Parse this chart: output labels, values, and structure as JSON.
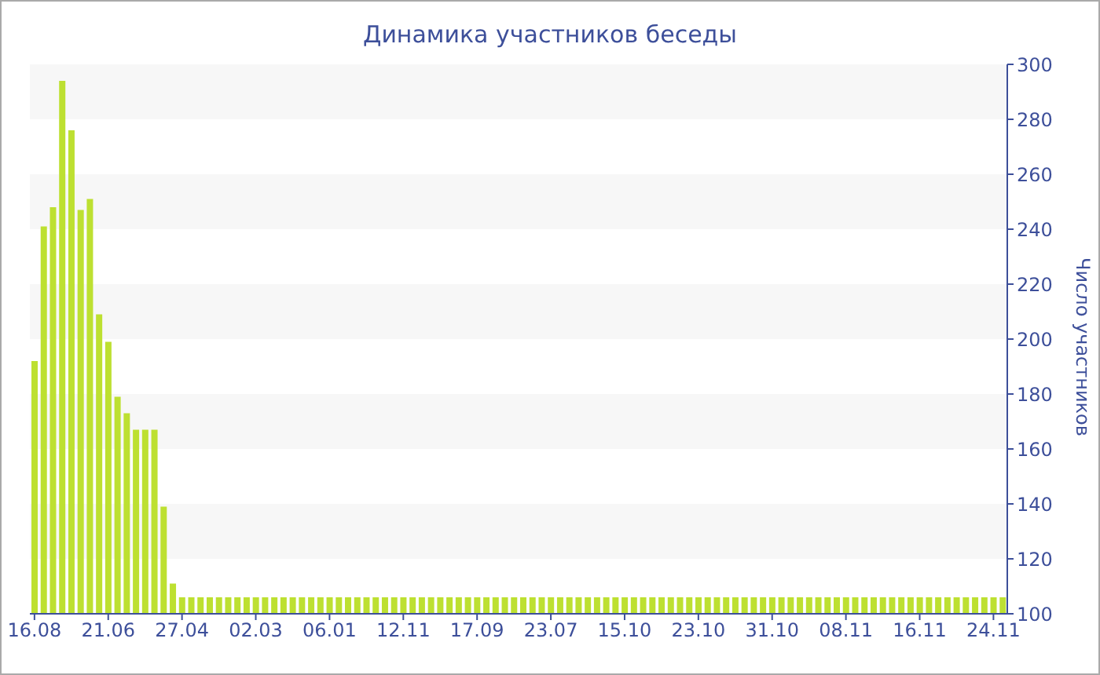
{
  "chart_data": {
    "type": "bar",
    "title": "Динамика участников беседы",
    "ylabel": "Число участников",
    "categories": [
      "16.08",
      null,
      null,
      null,
      null,
      null,
      null,
      null,
      "21.06",
      null,
      null,
      null,
      null,
      null,
      null,
      null,
      "27.04",
      null,
      null,
      null,
      null,
      null,
      null,
      null,
      "02.03",
      null,
      null,
      null,
      null,
      null,
      null,
      null,
      "06.01",
      null,
      null,
      null,
      null,
      null,
      null,
      null,
      "12.11",
      null,
      null,
      null,
      null,
      null,
      null,
      null,
      "17.09",
      null,
      null,
      null,
      null,
      null,
      null,
      null,
      "23.07",
      null,
      null,
      null,
      null,
      null,
      null,
      null,
      "15.10",
      null,
      null,
      null,
      null,
      null,
      null,
      null,
      "23.10",
      null,
      null,
      null,
      null,
      null,
      null,
      null,
      "31.10",
      null,
      null,
      null,
      null,
      null,
      null,
      null,
      "08.11",
      null,
      null,
      null,
      null,
      null,
      null,
      null,
      "16.11",
      null,
      null,
      null,
      null,
      null,
      null,
      null,
      "24.11",
      null
    ],
    "values": [
      192,
      241,
      248,
      294,
      276,
      247,
      251,
      209,
      199,
      179,
      173,
      167,
      167,
      167,
      139,
      111,
      106,
      106,
      106,
      106,
      106,
      106,
      106,
      106,
      106,
      106,
      106,
      106,
      106,
      106,
      106,
      106,
      106,
      106,
      106,
      106,
      106,
      106,
      106,
      106,
      106,
      106,
      106,
      106,
      106,
      106,
      106,
      106,
      106,
      106,
      106,
      106,
      106,
      106,
      106,
      106,
      106,
      106,
      106,
      106,
      106,
      106,
      106,
      106,
      106,
      106,
      106,
      106,
      106,
      106,
      106,
      106,
      106,
      106,
      106,
      106,
      106,
      106,
      106,
      106,
      106,
      106,
      106,
      106,
      106,
      106,
      106,
      106,
      106,
      106,
      106,
      106,
      106,
      106,
      106,
      106,
      106,
      106,
      106,
      106,
      106,
      106,
      106,
      106,
      106,
      106
    ],
    "color": "#bde031",
    "ylim": [
      100,
      300
    ],
    "yticks": [
      100,
      120,
      140,
      160,
      180,
      200,
      220,
      240,
      260,
      280,
      300
    ],
    "bands": [
      {
        "axis": "y",
        "from": 120,
        "to": 140,
        "color": "#f7f7f7"
      },
      {
        "axis": "y",
        "from": 160,
        "to": 180,
        "color": "#f7f7f7"
      },
      {
        "axis": "y",
        "from": 200,
        "to": 220,
        "color": "#f7f7f7"
      },
      {
        "axis": "y",
        "from": 240,
        "to": 260,
        "color": "#f7f7f7"
      },
      {
        "axis": "y",
        "from": 280,
        "to": 300,
        "color": "#f7f7f7"
      }
    ]
  }
}
